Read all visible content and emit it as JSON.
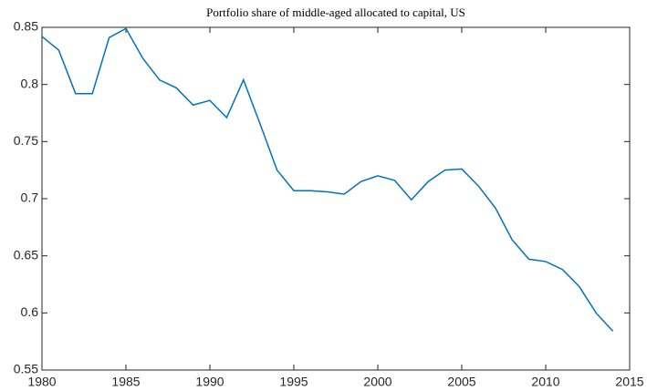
{
  "chart_data": {
    "type": "line",
    "title": "Portfolio share of middle-aged allocated to capital, US",
    "x": [
      1980,
      1981,
      1982,
      1983,
      1984,
      1985,
      1986,
      1987,
      1988,
      1989,
      1990,
      1991,
      1992,
      1993,
      1994,
      1995,
      1996,
      1997,
      1998,
      1999,
      2000,
      2001,
      2002,
      2003,
      2004,
      2005,
      2006,
      2007,
      2008,
      2009,
      2010,
      2011,
      2012,
      2013,
      2014
    ],
    "series": [
      {
        "color": "#0072BD",
        "values": [
          0.842,
          0.83,
          0.792,
          0.792,
          0.841,
          0.849,
          0.823,
          0.804,
          0.797,
          0.782,
          0.786,
          0.771,
          0.804,
          0.765,
          0.725,
          0.707,
          0.707,
          0.706,
          0.704,
          0.715,
          0.72,
          0.716,
          0.699,
          0.715,
          0.725,
          0.726,
          0.711,
          0.692,
          0.664,
          0.647,
          0.645,
          0.638,
          0.623,
          0.6,
          0.584
        ]
      }
    ],
    "xlim": [
      1980,
      2015
    ],
    "xticks": [
      1980,
      1985,
      1990,
      1995,
      2000,
      2005,
      2010,
      2015
    ],
    "ylim": [
      0.55,
      0.85
    ],
    "yticks": [
      0.55,
      0.6,
      0.65,
      0.7,
      0.75,
      0.8,
      0.85
    ],
    "grid": false
  }
}
